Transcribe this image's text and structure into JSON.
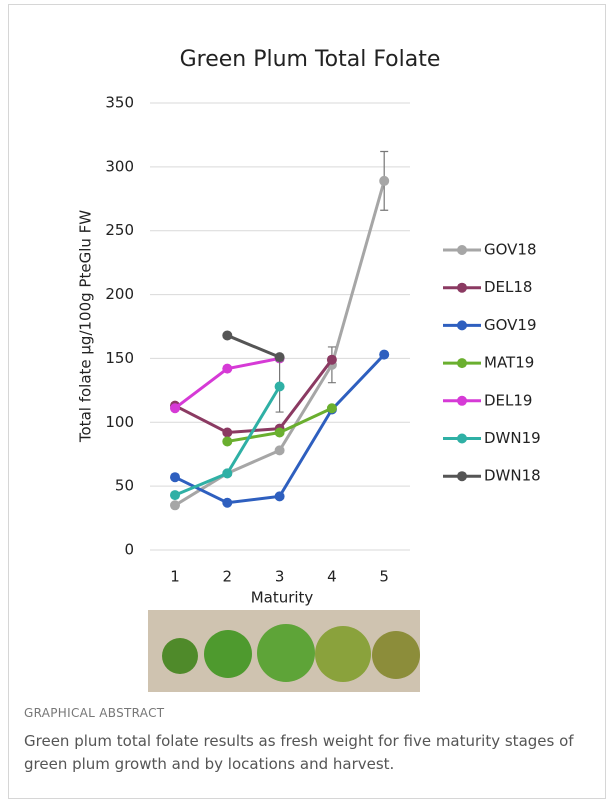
{
  "chart_data": {
    "type": "line",
    "title": "Green Plum Total Folate",
    "x_label": "Maturity",
    "y_label": "Total folate µg/100g PteGlu FW",
    "categories": [
      "1",
      "2",
      "3",
      "4",
      "5"
    ],
    "ylim": [
      0,
      350
    ],
    "yticks": [
      0,
      50,
      100,
      150,
      200,
      250,
      300,
      350
    ],
    "grid": true,
    "series": [
      {
        "name": "GOV18",
        "color": "#a6a6a6",
        "values": [
          35,
          60,
          78,
          145,
          289
        ],
        "errors": [
          null,
          null,
          null,
          14,
          23
        ]
      },
      {
        "name": "DEL18",
        "color": "#8b3a62",
        "values": [
          113,
          92,
          95,
          149,
          null
        ]
      },
      {
        "name": "GOV19",
        "color": "#2e5fbf",
        "values": [
          57,
          37,
          42,
          110,
          153
        ]
      },
      {
        "name": "MAT19",
        "color": "#6aaf2f",
        "values": [
          null,
          85,
          92,
          111,
          null
        ]
      },
      {
        "name": "DEL19",
        "color": "#d63ad6",
        "values": [
          111,
          142,
          150,
          null,
          null
        ]
      },
      {
        "name": "DWN19",
        "color": "#2fb0a5",
        "values": [
          43,
          60,
          128,
          null,
          null
        ],
        "errors": [
          null,
          null,
          20,
          null,
          null
        ]
      },
      {
        "name": "DWN18",
        "color": "#555555",
        "values": [
          null,
          168,
          151,
          null,
          null
        ]
      }
    ]
  },
  "caption": {
    "label": "GRAPHICAL ABSTRACT",
    "text": "Green plum total folate results as fresh weight for five maturity stages of green plum growth and by locations and harvest."
  }
}
